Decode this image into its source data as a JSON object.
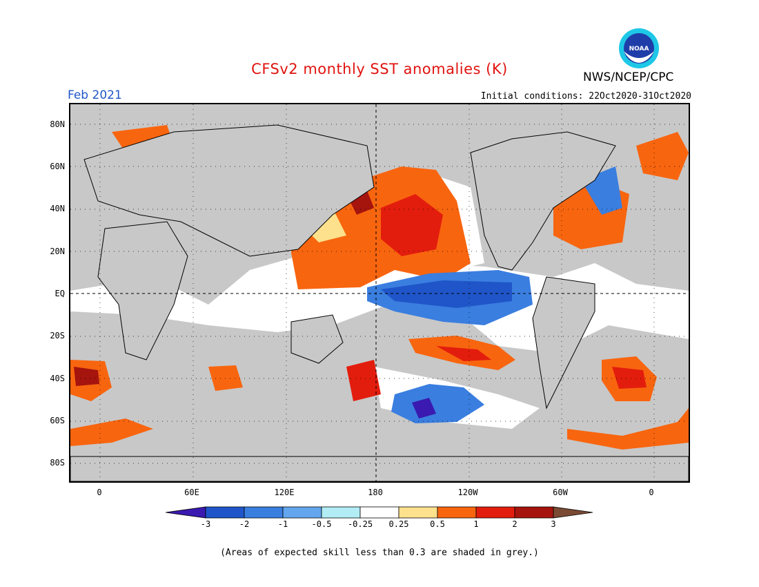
{
  "header": {
    "title": "CFSv2 monthly SST anomalies (K)",
    "agency": "NWS/NCEP/CPC",
    "period": "Feb 2021",
    "initial_conditions": "Initial conditions: 22Oct2020-31Oct2020",
    "logo_text": "NOAA"
  },
  "map": {
    "lat_labels": [
      "80N",
      "60N",
      "40N",
      "20N",
      "EQ",
      "20S",
      "40S",
      "60S",
      "80S"
    ],
    "lon_labels": [
      "0",
      "60E",
      "120E",
      "180",
      "120W",
      "60W",
      "0"
    ]
  },
  "colorbar": {
    "tick_labels": [
      "-3",
      "-2",
      "-1",
      "-0.5",
      "-0.25",
      "0.25",
      "0.5",
      "1",
      "2",
      "3"
    ],
    "colors": [
      "#3a1ab0",
      "#1f55c8",
      "#3a7ee0",
      "#63a6ee",
      "#b2ecf4",
      "#ffffff",
      "#fde18c",
      "#f8650f",
      "#e31d0d",
      "#a6140e",
      "#7a4a34"
    ]
  },
  "footnote": "(Areas of expected skill less than 0.3 are shaded in grey.)",
  "colors": {
    "title": "#e0130f",
    "period": "#1f55c8",
    "mask_grey": "#c8c8c8",
    "warm": "#f8650f",
    "cool": "#3a7ee0"
  }
}
